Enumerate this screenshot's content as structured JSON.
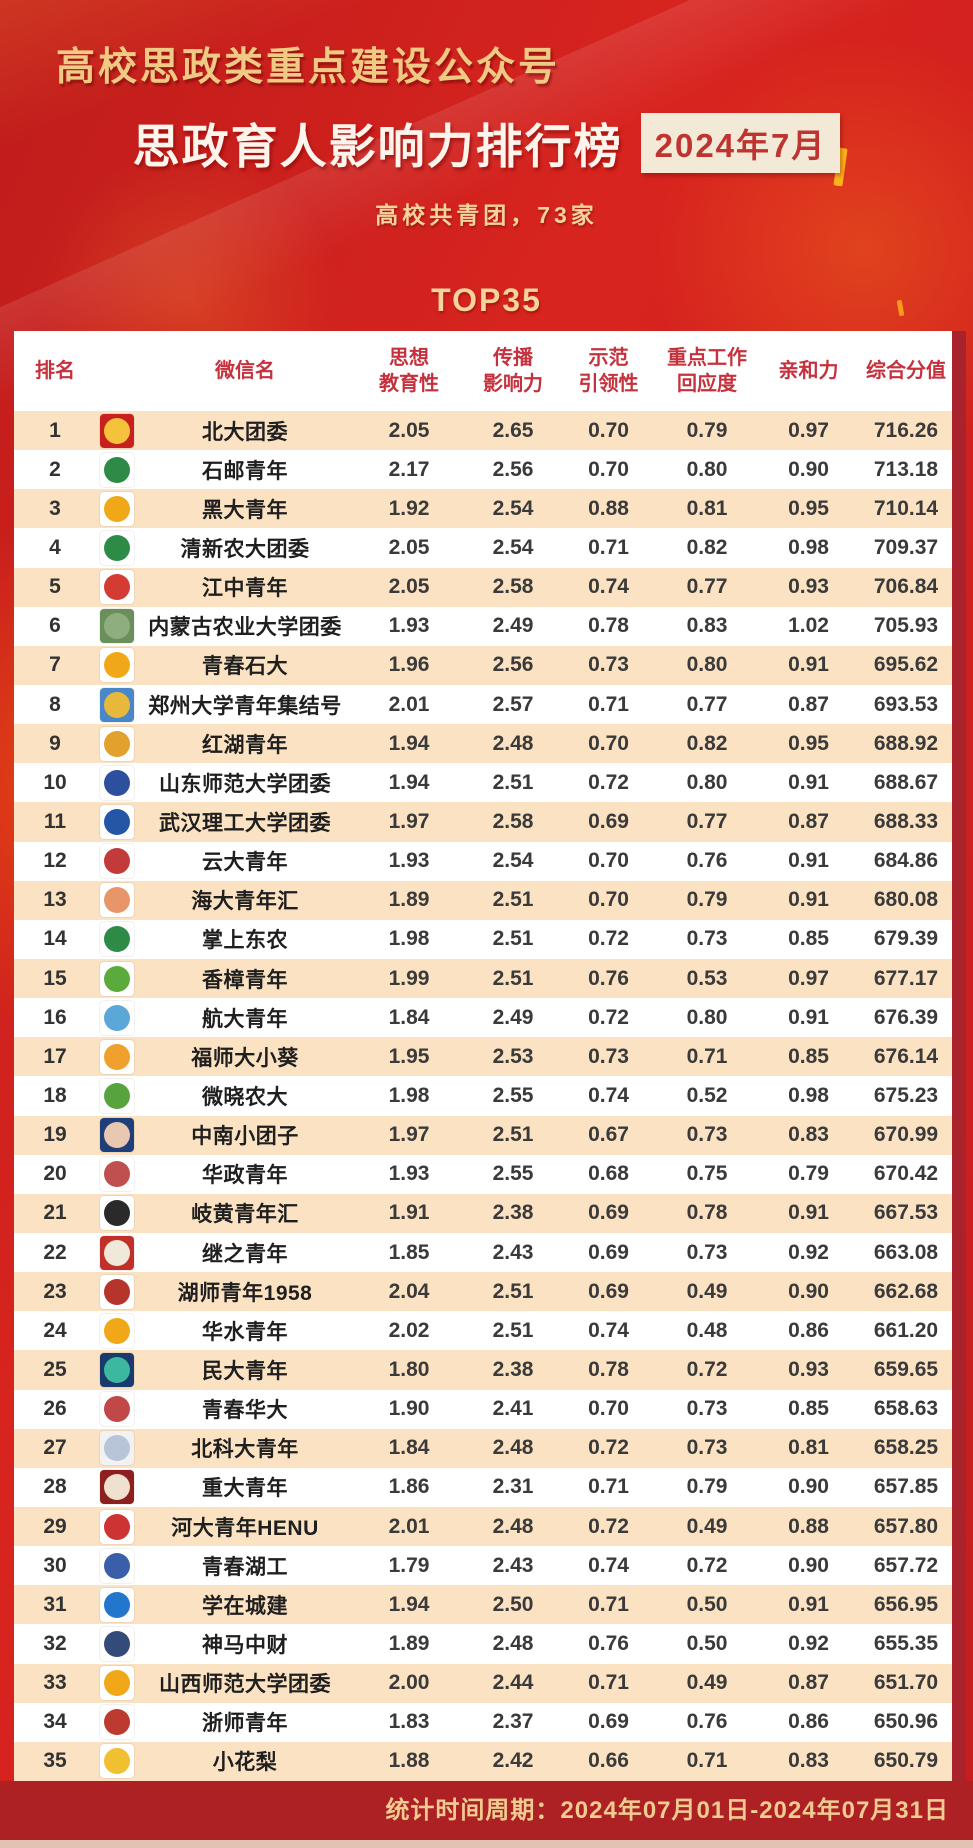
{
  "page": {
    "bg_color": "#d2211e",
    "accent_gold": "#f0ca84",
    "panel_color": "#ffffff",
    "stripe_color": "#fbe2c2",
    "footer_color": "#ad2023",
    "header_text_color": "#c5323e"
  },
  "header": {
    "kicker": "高校思政类重点建设公众号",
    "title": "思政育人影响力排行榜",
    "period_badge": "2024年7月",
    "subtitle": "高校共青团，73家",
    "top_label": "TOP35"
  },
  "table": {
    "columns": [
      {
        "key": "rank",
        "lines": [
          "排名"
        ]
      },
      {
        "key": "icon",
        "lines": [
          ""
        ]
      },
      {
        "key": "name",
        "lines": [
          "微信名"
        ]
      },
      {
        "key": "m1",
        "lines": [
          "思想",
          "教育性"
        ]
      },
      {
        "key": "m2",
        "lines": [
          "传播",
          "影响力"
        ]
      },
      {
        "key": "m3",
        "lines": [
          "示范",
          "引领性"
        ]
      },
      {
        "key": "m4",
        "lines": [
          "重点工作",
          "回应度"
        ]
      },
      {
        "key": "m5",
        "lines": [
          "亲和力"
        ]
      },
      {
        "key": "score",
        "lines": [
          "综合分值"
        ]
      }
    ],
    "rows": [
      {
        "rank": "1",
        "name": "北大团委",
        "m1": "2.05",
        "m2": "2.65",
        "m3": "0.70",
        "m4": "0.79",
        "m5": "0.97",
        "score": "716.26",
        "icon": {
          "bg": "#c8201d",
          "fg": "#f5c23c"
        }
      },
      {
        "rank": "2",
        "name": "石邮青年",
        "m1": "2.17",
        "m2": "2.56",
        "m3": "0.70",
        "m4": "0.80",
        "m5": "0.90",
        "score": "713.18",
        "icon": {
          "bg": "#ffffff",
          "fg": "#2e8b47"
        }
      },
      {
        "rank": "3",
        "name": "黑大青年",
        "m1": "1.92",
        "m2": "2.54",
        "m3": "0.88",
        "m4": "0.81",
        "m5": "0.95",
        "score": "710.14",
        "icon": {
          "bg": "#ffffff",
          "fg": "#f0a818"
        }
      },
      {
        "rank": "4",
        "name": "清新农大团委",
        "m1": "2.05",
        "m2": "2.54",
        "m3": "0.71",
        "m4": "0.82",
        "m5": "0.98",
        "score": "709.37",
        "icon": {
          "bg": "#ffffff",
          "fg": "#2e8b47"
        }
      },
      {
        "rank": "5",
        "name": "江中青年",
        "m1": "2.05",
        "m2": "2.58",
        "m3": "0.74",
        "m4": "0.77",
        "m5": "0.93",
        "score": "706.84",
        "icon": {
          "bg": "#ffffff",
          "fg": "#d43c33"
        }
      },
      {
        "rank": "6",
        "name": "内蒙古农业大学团委",
        "m1": "1.93",
        "m2": "2.49",
        "m3": "0.78",
        "m4": "0.83",
        "m5": "1.02",
        "score": "705.93",
        "icon": {
          "bg": "#6a8f5a",
          "fg": "#8fae7f"
        }
      },
      {
        "rank": "7",
        "name": "青春石大",
        "m1": "1.96",
        "m2": "2.56",
        "m3": "0.73",
        "m4": "0.80",
        "m5": "0.91",
        "score": "695.62",
        "icon": {
          "bg": "#ffffff",
          "fg": "#f0a818"
        }
      },
      {
        "rank": "8",
        "name": "郑州大学青年集结号",
        "m1": "2.01",
        "m2": "2.57",
        "m3": "0.71",
        "m4": "0.77",
        "m5": "0.87",
        "score": "693.53",
        "icon": {
          "bg": "#4a87c8",
          "fg": "#e8b83c"
        }
      },
      {
        "rank": "9",
        "name": "红湖青年",
        "m1": "1.94",
        "m2": "2.48",
        "m3": "0.70",
        "m4": "0.82",
        "m5": "0.95",
        "score": "688.92",
        "icon": {
          "bg": "#ffffff",
          "fg": "#e2a02c"
        }
      },
      {
        "rank": "10",
        "name": "山东师范大学团委",
        "m1": "1.94",
        "m2": "2.51",
        "m3": "0.72",
        "m4": "0.80",
        "m5": "0.91",
        "score": "688.67",
        "icon": {
          "bg": "#ffffff",
          "fg": "#2c4f9e"
        }
      },
      {
        "rank": "11",
        "name": "武汉理工大学团委",
        "m1": "1.97",
        "m2": "2.58",
        "m3": "0.69",
        "m4": "0.77",
        "m5": "0.87",
        "score": "688.33",
        "icon": {
          "bg": "#ffffff",
          "fg": "#2456a8"
        }
      },
      {
        "rank": "12",
        "name": "云大青年",
        "m1": "1.93",
        "m2": "2.54",
        "m3": "0.70",
        "m4": "0.76",
        "m5": "0.91",
        "score": "684.86",
        "icon": {
          "bg": "#ffffff",
          "fg": "#c23a3a"
        }
      },
      {
        "rank": "13",
        "name": "海大青年汇",
        "m1": "1.89",
        "m2": "2.51",
        "m3": "0.70",
        "m4": "0.79",
        "m5": "0.91",
        "score": "680.08",
        "icon": {
          "bg": "#ffffff",
          "fg": "#e8956a"
        }
      },
      {
        "rank": "14",
        "name": "掌上东农",
        "m1": "1.98",
        "m2": "2.51",
        "m3": "0.72",
        "m4": "0.73",
        "m5": "0.85",
        "score": "679.39",
        "icon": {
          "bg": "#ffffff",
          "fg": "#2e8b47"
        }
      },
      {
        "rank": "15",
        "name": "香樟青年",
        "m1": "1.99",
        "m2": "2.51",
        "m3": "0.76",
        "m4": "0.53",
        "m5": "0.97",
        "score": "677.17",
        "icon": {
          "bg": "#ffffff",
          "fg": "#5aab3c"
        }
      },
      {
        "rank": "16",
        "name": "航大青年",
        "m1": "1.84",
        "m2": "2.49",
        "m3": "0.72",
        "m4": "0.80",
        "m5": "0.91",
        "score": "676.39",
        "icon": {
          "bg": "#ffffff",
          "fg": "#5ba8d8"
        }
      },
      {
        "rank": "17",
        "name": "福师大小葵",
        "m1": "1.95",
        "m2": "2.53",
        "m3": "0.73",
        "m4": "0.71",
        "m5": "0.85",
        "score": "676.14",
        "icon": {
          "bg": "#ffffff",
          "fg": "#f0a02c"
        }
      },
      {
        "rank": "18",
        "name": "微晓农大",
        "m1": "1.98",
        "m2": "2.55",
        "m3": "0.74",
        "m4": "0.52",
        "m5": "0.98",
        "score": "675.23",
        "icon": {
          "bg": "#ffffff",
          "fg": "#57a33e"
        }
      },
      {
        "rank": "19",
        "name": "中南小团子",
        "m1": "1.97",
        "m2": "2.51",
        "m3": "0.67",
        "m4": "0.73",
        "m5": "0.83",
        "score": "670.99",
        "icon": {
          "bg": "#1f3f7a",
          "fg": "#e8c8b0"
        }
      },
      {
        "rank": "20",
        "name": "华政青年",
        "m1": "1.93",
        "m2": "2.55",
        "m3": "0.68",
        "m4": "0.75",
        "m5": "0.79",
        "score": "670.42",
        "icon": {
          "bg": "#ffffff",
          "fg": "#c05050"
        }
      },
      {
        "rank": "21",
        "name": "岐黄青年汇",
        "m1": "1.91",
        "m2": "2.38",
        "m3": "0.69",
        "m4": "0.78",
        "m5": "0.91",
        "score": "667.53",
        "icon": {
          "bg": "#ffffff",
          "fg": "#2a2a2a"
        }
      },
      {
        "rank": "22",
        "name": "继之青年",
        "m1": "1.85",
        "m2": "2.43",
        "m3": "0.69",
        "m4": "0.73",
        "m5": "0.92",
        "score": "663.08",
        "icon": {
          "bg": "#c03028",
          "fg": "#f0e8d8"
        }
      },
      {
        "rank": "23",
        "name": "湖师青年1958",
        "m1": "2.04",
        "m2": "2.51",
        "m3": "0.69",
        "m4": "0.49",
        "m5": "0.90",
        "score": "662.68",
        "icon": {
          "bg": "#ffffff",
          "fg": "#b5342c"
        }
      },
      {
        "rank": "24",
        "name": "华水青年",
        "m1": "2.02",
        "m2": "2.51",
        "m3": "0.74",
        "m4": "0.48",
        "m5": "0.86",
        "score": "661.20",
        "icon": {
          "bg": "#ffffff",
          "fg": "#f0a818"
        }
      },
      {
        "rank": "25",
        "name": "民大青年",
        "m1": "1.80",
        "m2": "2.38",
        "m3": "0.78",
        "m4": "0.72",
        "m5": "0.93",
        "score": "659.65",
        "icon": {
          "bg": "#1a3a6e",
          "fg": "#3cb8a0"
        }
      },
      {
        "rank": "26",
        "name": "青春华大",
        "m1": "1.90",
        "m2": "2.41",
        "m3": "0.70",
        "m4": "0.73",
        "m5": "0.85",
        "score": "658.63",
        "icon": {
          "bg": "#ffffff",
          "fg": "#c04848"
        }
      },
      {
        "rank": "27",
        "name": "北科大青年",
        "m1": "1.84",
        "m2": "2.48",
        "m3": "0.72",
        "m4": "0.73",
        "m5": "0.81",
        "score": "658.25",
        "icon": {
          "bg": "#f2f2f2",
          "fg": "#b8c4d8"
        }
      },
      {
        "rank": "28",
        "name": "重大青年",
        "m1": "1.86",
        "m2": "2.31",
        "m3": "0.71",
        "m4": "0.79",
        "m5": "0.90",
        "score": "657.85",
        "icon": {
          "bg": "#8e1f1f",
          "fg": "#f0e0d0"
        }
      },
      {
        "rank": "29",
        "name": "河大青年HENU",
        "m1": "2.01",
        "m2": "2.48",
        "m3": "0.72",
        "m4": "0.49",
        "m5": "0.88",
        "score": "657.80",
        "icon": {
          "bg": "#ffffff",
          "fg": "#cc3333"
        }
      },
      {
        "rank": "30",
        "name": "青春湖工",
        "m1": "1.79",
        "m2": "2.43",
        "m3": "0.74",
        "m4": "0.72",
        "m5": "0.90",
        "score": "657.72",
        "icon": {
          "bg": "#ffffff",
          "fg": "#3a5fa8"
        }
      },
      {
        "rank": "31",
        "name": "学在城建",
        "m1": "1.94",
        "m2": "2.50",
        "m3": "0.71",
        "m4": "0.50",
        "m5": "0.91",
        "score": "656.95",
        "icon": {
          "bg": "#ffffff",
          "fg": "#2277cc"
        }
      },
      {
        "rank": "32",
        "name": "神马中财",
        "m1": "1.89",
        "m2": "2.48",
        "m3": "0.76",
        "m4": "0.50",
        "m5": "0.92",
        "score": "655.35",
        "icon": {
          "bg": "#ffffff",
          "fg": "#344a78"
        }
      },
      {
        "rank": "33",
        "name": "山西师范大学团委",
        "m1": "2.00",
        "m2": "2.44",
        "m3": "0.71",
        "m4": "0.49",
        "m5": "0.87",
        "score": "651.70",
        "icon": {
          "bg": "#ffffff",
          "fg": "#f0a818"
        }
      },
      {
        "rank": "34",
        "name": "浙师青年",
        "m1": "1.83",
        "m2": "2.37",
        "m3": "0.69",
        "m4": "0.76",
        "m5": "0.86",
        "score": "650.96",
        "icon": {
          "bg": "#ffffff",
          "fg": "#bc3a30"
        }
      },
      {
        "rank": "35",
        "name": "小花梨",
        "m1": "1.88",
        "m2": "2.42",
        "m3": "0.66",
        "m4": "0.71",
        "m5": "0.83",
        "score": "650.79",
        "icon": {
          "bg": "#ffffff",
          "fg": "#f0c030"
        }
      }
    ]
  },
  "footer": {
    "stats_period": "统计时间周期：2024年07月01日-2024年07月31日"
  }
}
